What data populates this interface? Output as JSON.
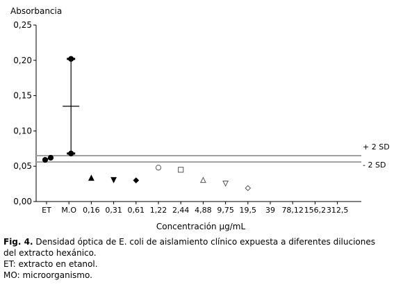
{
  "chart_data": {
    "type": "scatter",
    "ylabel": "Absorbancia",
    "xlabel": "Concentración µg/mL",
    "ylim": [
      0,
      0.25
    ],
    "yticks": [
      "0,00",
      "0,05",
      "0,10",
      "0,15",
      "0,20",
      "0,25"
    ],
    "categories": [
      "ET",
      "M.O",
      "0,16",
      "0,31",
      "0,61",
      "1,22",
      "2,44",
      "4,88",
      "9,75",
      "19,5",
      "39",
      "78,12",
      "156,2",
      "312,5"
    ],
    "reference_lines": [
      {
        "label": "+ 2 SD",
        "value": 0.065
      },
      {
        "label": "- 2 SD",
        "value": 0.056
      }
    ],
    "series": [
      {
        "category": "ET",
        "marker": "filled-circle",
        "values": [
          0.059,
          0.062
        ]
      },
      {
        "category": "M.O",
        "marker": "filled-circle",
        "values": [
          0.202,
          0.068
        ],
        "mean": 0.135
      },
      {
        "category": "0,16",
        "marker": "filled-triangle-up",
        "values": [
          0.033
        ]
      },
      {
        "category": "0,31",
        "marker": "filled-triangle-down",
        "values": [
          0.031
        ]
      },
      {
        "category": "0,61",
        "marker": "filled-diamond",
        "values": [
          0.03
        ]
      },
      {
        "category": "1,22",
        "marker": "open-circle",
        "values": [
          0.048
        ]
      },
      {
        "category": "2,44",
        "marker": "open-square",
        "values": [
          0.045
        ]
      },
      {
        "category": "4,88",
        "marker": "open-triangle-up",
        "values": [
          0.03
        ]
      },
      {
        "category": "9,75",
        "marker": "open-triangle-down",
        "values": [
          0.026
        ]
      },
      {
        "category": "19,5",
        "marker": "open-diamond",
        "values": [
          0.019
        ]
      }
    ],
    "grid": false,
    "colors": {
      "reference_line": "#a0a0a0",
      "axis": "#000000"
    }
  },
  "caption": {
    "fig_label": "Fig. 4.",
    "line1": " Densidad óptica de E. coli de aislamiento clínico expuesta a diferentes diluciones",
    "line2": "del extracto hexánico.",
    "line3": "ET: extracto en etanol.",
    "line4": "MO: microorganismo."
  }
}
